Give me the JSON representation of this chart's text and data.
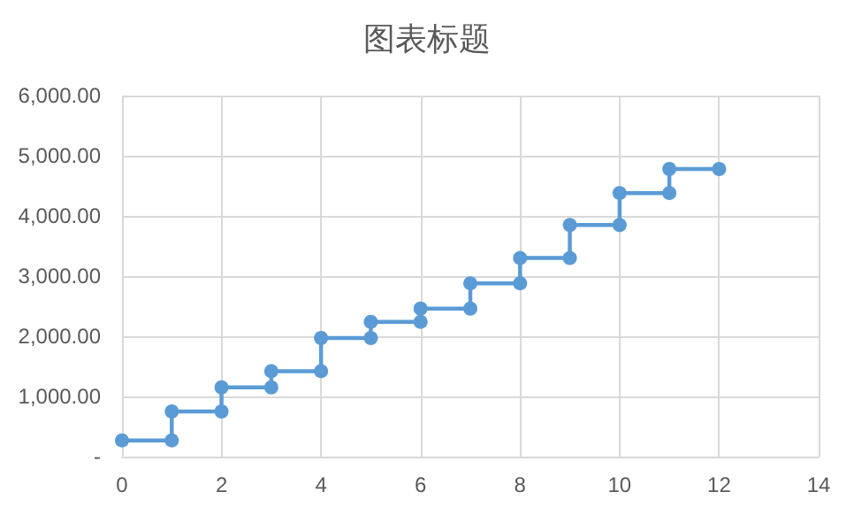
{
  "chart_data": {
    "type": "line",
    "title": "图表标题",
    "x": [
      0,
      1,
      1,
      2,
      2,
      3,
      3,
      4,
      4,
      5,
      5,
      6,
      6,
      7,
      7,
      8,
      8,
      9,
      9,
      10,
      10,
      11,
      11,
      12
    ],
    "series": [
      {
        "color": "#5b9bd5",
        "values": [
          270,
          270,
          750,
          750,
          1150,
          1150,
          1420,
          1420,
          1970,
          1970,
          2240,
          2240,
          2460,
          2460,
          2880,
          2880,
          3300,
          3300,
          3850,
          3850,
          4380,
          4380,
          4780,
          4780
        ]
      }
    ],
    "xlim": [
      0,
      14
    ],
    "xticks": [
      0,
      2,
      4,
      6,
      8,
      10,
      12,
      14
    ],
    "ylim": [
      0,
      6000
    ],
    "yticks": [
      {
        "value": 0,
        "label": "-"
      },
      {
        "value": 1000,
        "label": "1,000.00"
      },
      {
        "value": 2000,
        "label": "2,000.00"
      },
      {
        "value": 3000,
        "label": "3,000.00"
      },
      {
        "value": 4000,
        "label": "4,000.00"
      },
      {
        "value": 5000,
        "label": "5,000.00"
      },
      {
        "value": 6000,
        "label": "6,000.00"
      }
    ],
    "grid": true,
    "marker": "circle",
    "line_style": "solid"
  }
}
